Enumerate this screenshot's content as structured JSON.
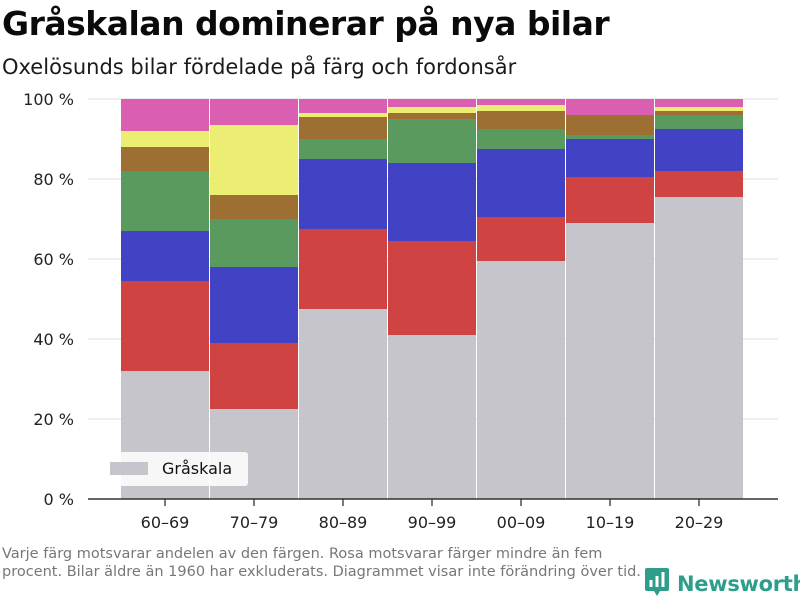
{
  "title": "Gråskalan dominerar på nya bilar",
  "subtitle": "Oxelösunds bilar fördelade på färg och fordonsår",
  "footnote": "Varje färg motsvarar andelen av den färgen. Rosa motsvarar färger mindre än fem procent. Bilar äldre än 1960 har exkluderats. Diagrammet visar inte förändring över tid.",
  "brand": {
    "name": "Newsworthy",
    "icon": "bar-chart-logo-icon"
  },
  "colors": {
    "grayscale": "#c6c5cb",
    "red": "#cf4443",
    "blue": "#4243c4",
    "green": "#5b9a5f",
    "yellow": "#ecee73",
    "brown": "#9d6f33",
    "pink": "#db5fb0",
    "axis": "#333333",
    "grid": "#dddddd"
  },
  "chart_data": {
    "type": "bar",
    "stacked": true,
    "categories": [
      "60–69",
      "70–79",
      "80–89",
      "90–99",
      "00–09",
      "10–19",
      "20–29"
    ],
    "y_ticks": [
      "0 %",
      "20 %",
      "40 %",
      "60 %",
      "80 %",
      "100 %"
    ],
    "ylim": [
      0,
      100
    ],
    "grid": true,
    "legend": {
      "position": "bottom-left",
      "entries": [
        "Gråskala"
      ]
    },
    "series": [
      {
        "name": "Gråskala",
        "color_key": "grayscale",
        "values": [
          32,
          22.5,
          47.5,
          41,
          59.5,
          69,
          75.5
        ]
      },
      {
        "color_key": "red",
        "values": [
          22.5,
          16.5,
          20,
          23.5,
          11,
          11.5,
          6.5
        ]
      },
      {
        "color_key": "blue",
        "values": [
          12.5,
          19,
          17.5,
          19.5,
          17,
          9.5,
          10.5
        ]
      },
      {
        "color_key": "green",
        "values": [
          15,
          12,
          5,
          11,
          5,
          1,
          3.5
        ]
      },
      {
        "color_key": "brown",
        "values": [
          6,
          6,
          5.5,
          1.5,
          4.5,
          5,
          1
        ]
      },
      {
        "color_key": "yellow",
        "values": [
          4,
          17.5,
          1,
          1.5,
          1.5,
          0,
          1
        ]
      },
      {
        "color_key": "pink",
        "values": [
          8,
          6.5,
          3.5,
          2,
          1.5,
          4,
          2
        ]
      }
    ]
  }
}
